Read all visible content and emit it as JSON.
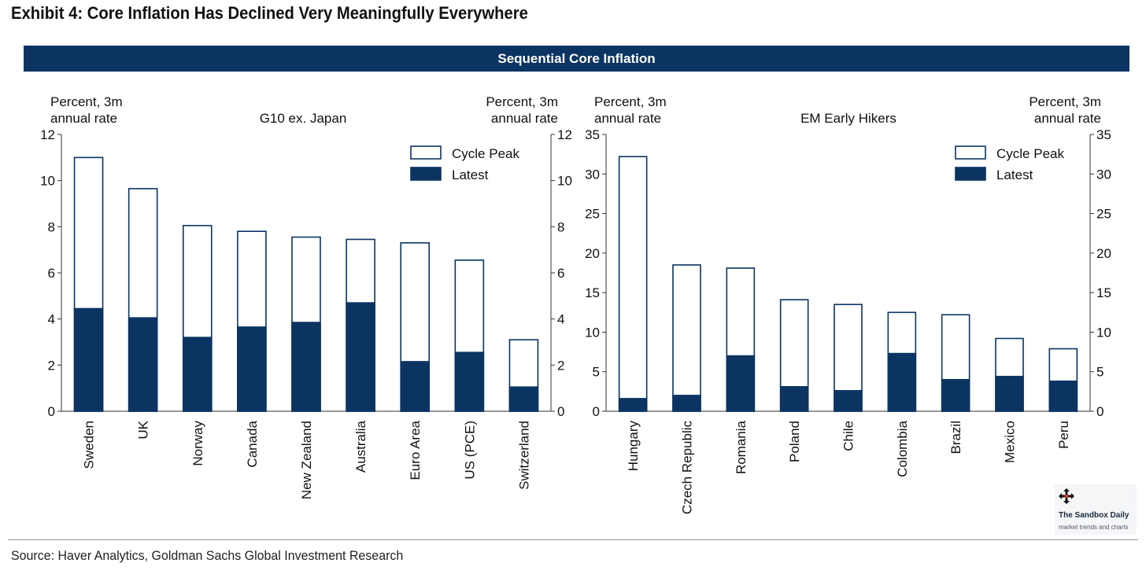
{
  "exhibit_title": "Exhibit 4: Core Inflation Has Declined Very Meaningfully Everywhere",
  "banner_title": "Sequential Core Inflation",
  "source": "Source: Haver Analytics, Goldman Sachs Global Investment Research",
  "logo": {
    "name": "The Sandbox Daily",
    "tagline": "market trends and charts",
    "icon": "move-arrows-icon"
  },
  "colors": {
    "latest": "#0b3462",
    "cycle_peak_fill": "#ffffff",
    "cycle_peak_stroke": "#0b3462",
    "banner": "#0b3462"
  },
  "chart_data": [
    {
      "type": "bar",
      "title": "G10 ex. Japan",
      "ylabel_left": [
        "Percent, 3m",
        "annual rate"
      ],
      "ylabel_right": [
        "Percent, 3m",
        "annual rate"
      ],
      "ylim": [
        0,
        12
      ],
      "yticks": [
        0,
        2,
        4,
        6,
        8,
        10,
        12
      ],
      "legend": [
        "Cycle Peak",
        "Latest"
      ],
      "legend_position": "top-right",
      "categories": [
        "Sweden",
        "UK",
        "Norway",
        "Canada",
        "New Zealand",
        "Australia",
        "Euro Area",
        "US (PCE)",
        "Switzerland"
      ],
      "series": [
        {
          "name": "Cycle Peak",
          "values": [
            11.0,
            9.65,
            8.05,
            7.8,
            7.55,
            7.45,
            7.3,
            6.55,
            3.1
          ]
        },
        {
          "name": "Latest",
          "values": [
            4.45,
            4.05,
            3.2,
            3.65,
            3.85,
            4.7,
            2.15,
            2.55,
            1.05
          ]
        }
      ]
    },
    {
      "type": "bar",
      "title": "EM Early Hikers",
      "ylabel_left": [
        "Percent, 3m",
        "annual rate"
      ],
      "ylabel_right": [
        "Percent, 3m",
        "annual rate"
      ],
      "ylim": [
        0,
        35
      ],
      "yticks": [
        0,
        5,
        10,
        15,
        20,
        25,
        30,
        35
      ],
      "legend": [
        "Cycle Peak",
        "Latest"
      ],
      "legend_position": "top-right",
      "categories": [
        "Hungary",
        "Czech Republic",
        "Romania",
        "Poland",
        "Chile",
        "Colombia",
        "Brazil",
        "Mexico",
        "Peru"
      ],
      "series": [
        {
          "name": "Cycle Peak",
          "values": [
            32.2,
            18.5,
            18.1,
            14.1,
            13.5,
            12.5,
            12.2,
            9.2,
            7.9
          ]
        },
        {
          "name": "Latest",
          "values": [
            1.6,
            2.0,
            7.0,
            3.1,
            2.6,
            7.3,
            4.0,
            4.4,
            3.8
          ]
        }
      ]
    }
  ]
}
